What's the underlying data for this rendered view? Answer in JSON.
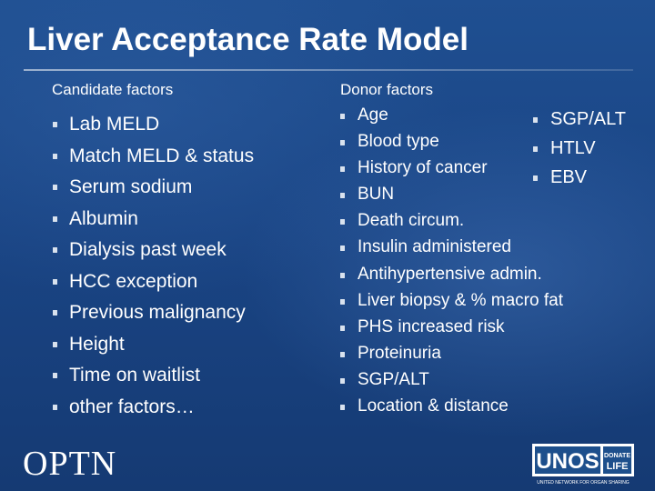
{
  "slide": {
    "title": "Liver Acceptance Rate Model"
  },
  "candidate": {
    "heading": "Candidate factors",
    "items": [
      "Lab MELD",
      "Match MELD & status",
      "Serum sodium",
      "Albumin",
      "Dialysis past week",
      "HCC exception",
      "Previous malignancy",
      "Height",
      "Time on waitlist",
      "other factors…"
    ]
  },
  "donor": {
    "heading": "Donor factors",
    "items": [
      "Age",
      "Blood type",
      "History of cancer",
      "BUN",
      "Death circum.",
      "Insulin administered",
      "Antihypertensive admin.",
      "Liver biopsy & % macro fat",
      "PHS increased risk",
      "Proteinuria",
      "SGP/ALT",
      "Location & distance"
    ],
    "extra_items": [
      "SGP/ALT",
      "HTLV",
      "EBV"
    ]
  },
  "logos": {
    "optn": "OPTN",
    "unos": "UNOS",
    "donate": "DONATE",
    "life": "LIFE",
    "unos_tagline": "UNITED NETWORK FOR ORGAN SHARING"
  },
  "colors": {
    "background": "#1a4585",
    "text": "#ffffff",
    "bullet": "#d9e2ee",
    "unos_blue": "#1d4f8c"
  }
}
